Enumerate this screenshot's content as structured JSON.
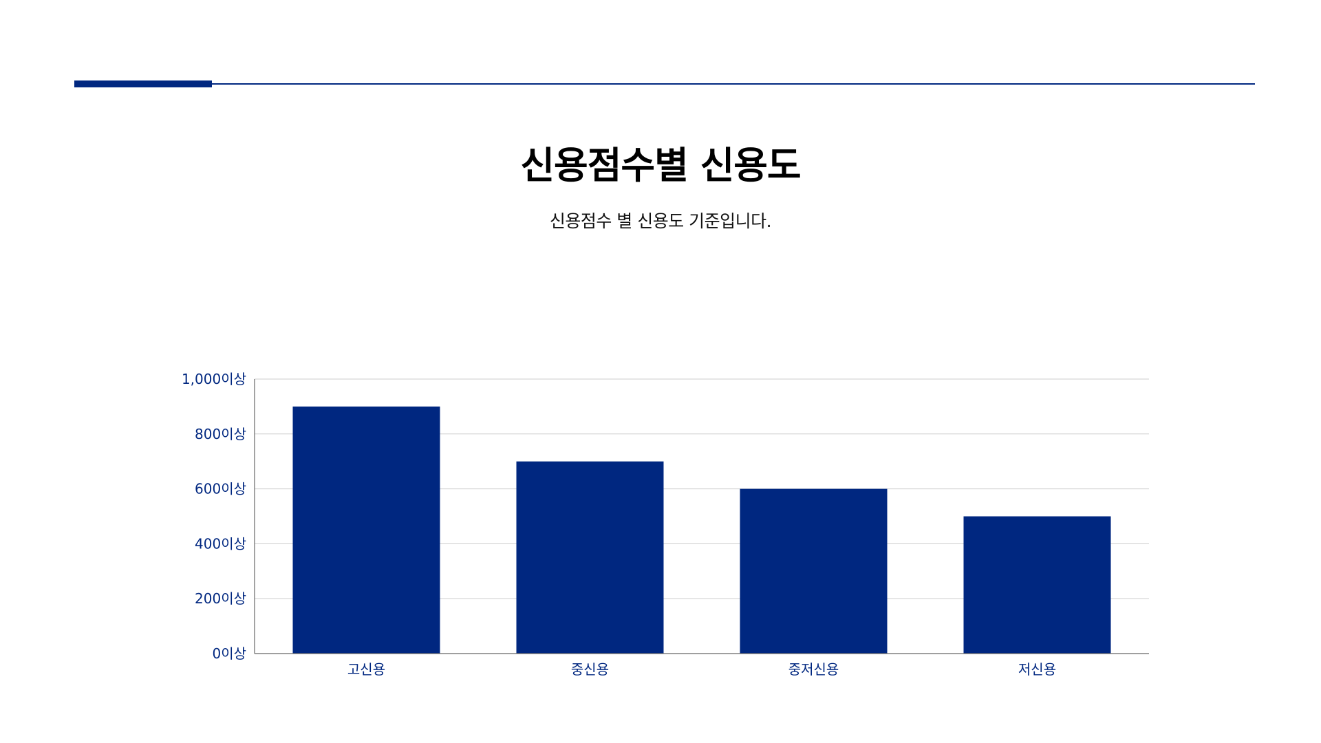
{
  "header": {
    "title": "신용점수별 신용도",
    "subtitle": "신용점수 별 신용도 기준입니다."
  },
  "colors": {
    "accent": "#002780",
    "bar": "#002780",
    "grid": "#cccccc",
    "axis": "#666666"
  },
  "chart_data": {
    "type": "bar",
    "categories": [
      "고신용",
      "중신용",
      "중저신용",
      "저신용"
    ],
    "values": [
      900,
      700,
      600,
      500
    ],
    "ylim": [
      0,
      1000
    ],
    "yticks": [
      0,
      200,
      400,
      600,
      800,
      1000
    ],
    "ytick_labels": [
      "0이상",
      "200이상",
      "400이상",
      "600이상",
      "800이상",
      "1,000이상"
    ],
    "xlabel": "",
    "ylabel": "",
    "grid": true,
    "legend": "none"
  }
}
